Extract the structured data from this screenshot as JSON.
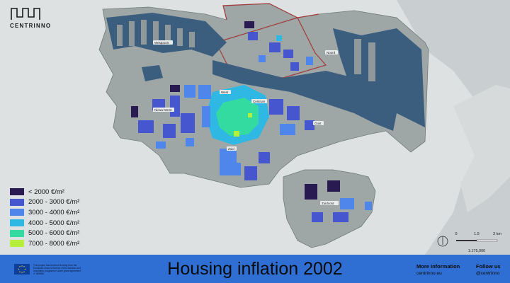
{
  "brand": {
    "name": "CENTRINNO"
  },
  "footer": {
    "title": "Housing inflation 2002",
    "funding_note": "This project has received funding from the European Union's Horizon 2020 research and innovation programme under grant agreement n° 869595",
    "info_label": "More information",
    "info_value": "centrinno.eu",
    "follow_label": "Follow us",
    "follow_value": "@centrinno"
  },
  "legend": {
    "items": [
      {
        "label": "< 2000 €/m²",
        "color": "#2a1a52"
      },
      {
        "label": "2000 - 3000 €/m²",
        "color": "#4556cf"
      },
      {
        "label": "3000 - 4000 €/m²",
        "color": "#4f86ec"
      },
      {
        "label": "4000 - 5000 €/m²",
        "color": "#2fb8e3"
      },
      {
        "label": "5000 - 6000 €/m²",
        "color": "#33dba0"
      },
      {
        "label": "7000 - 8000 €/m²",
        "color": "#b4ef3c"
      }
    ]
  },
  "scale": {
    "ticks": [
      "0",
      "1.5",
      "3 km"
    ],
    "ratio": "1:175,000"
  },
  "place_labels": [
    "Westpoort",
    "Noord",
    "Nieuw-West",
    "West",
    "Centrum",
    "Oost",
    "Zuid",
    "Zuidoost"
  ],
  "colors": {
    "water": "#3b5d7e",
    "land": "#9aa3a3",
    "background": "#dfe3e3",
    "footer": "#2f6fd3",
    "border_highlight": "#a33a3a"
  }
}
